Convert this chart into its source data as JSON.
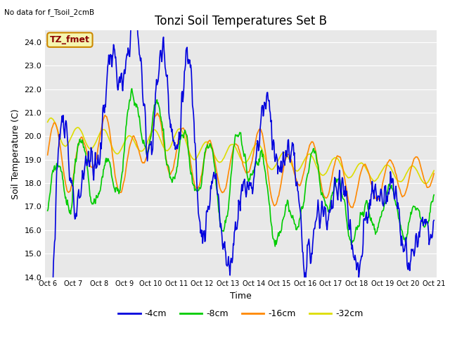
{
  "title": "Tonzi Soil Temperatures Set B",
  "no_data_label": "No data for f_Tsoil_2cmB",
  "tz_fmet_label": "TZ_fmet",
  "xlabel": "Time",
  "ylabel": "Soil Temperature (C)",
  "ylim": [
    14.0,
    24.5
  ],
  "yticks": [
    14.0,
    15.0,
    16.0,
    17.0,
    18.0,
    19.0,
    20.0,
    21.0,
    22.0,
    23.0,
    24.0
  ],
  "xtick_labels": [
    "Oct 6",
    "Oct 7",
    "Oct 8",
    "Oct 9",
    "Oct 10",
    "Oct 11",
    "Oct 12",
    "Oct 13",
    "Oct 14",
    "Oct 15",
    "Oct 16",
    "Oct 17",
    "Oct 18",
    "Oct 19",
    "Oct 20",
    "Oct 21"
  ],
  "colors": {
    "4cm": "#0000dd",
    "8cm": "#00cc00",
    "16cm": "#ff8800",
    "32cm": "#dddd00"
  },
  "legend_labels": [
    "-4cm",
    "-8cm",
    "-16cm",
    "-32cm"
  ],
  "bg_color": "#e8e8e8",
  "title_fontsize": 12,
  "axis_fontsize": 9,
  "tick_fontsize": 8,
  "linewidth": 1.2
}
